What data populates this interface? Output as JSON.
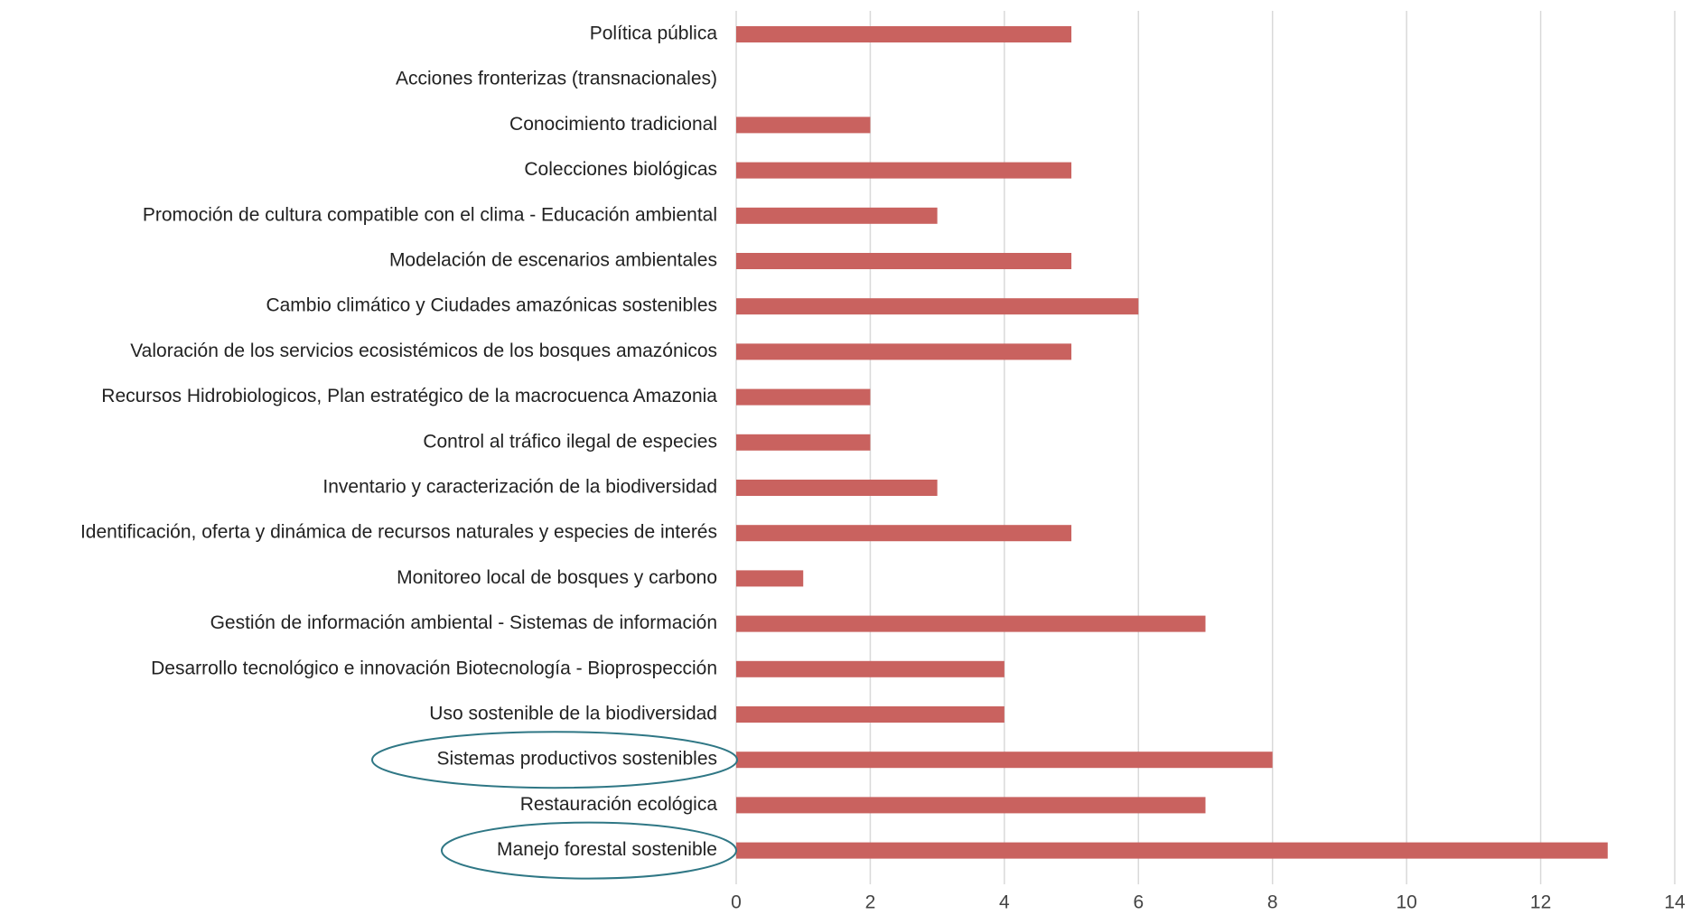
{
  "chart_data": {
    "type": "barh",
    "categories": [
      "Política pública",
      "Acciones fronterizas (transnacionales)",
      "Conocimiento tradicional",
      "Colecciones biológicas",
      "Promoción de cultura compatible con el clima - Educación ambiental",
      "Modelación  de escenarios ambientales",
      "Cambio climático y Ciudades amazónicas sostenibles",
      "Valoración de los servicios ecosistémicos de los bosques amazónicos",
      "Recursos Hidrobiologicos, Plan estratégico de la macrocuenca Amazonia",
      "Control al tráfico ilegal de especies",
      "Inventario y caracterización de la biodiversidad",
      "Identificación, oferta y dinámica de recursos naturales y especies de interés",
      "Monitoreo local de bosques y carbono",
      "Gestión de información ambiental - Sistemas de información",
      "Desarrollo tecnológico e innovación  Biotecnología - Bioprospección",
      "Uso sostenible de la biodiversidad",
      "Sistemas productivos sostenibles",
      "Restauración ecológica",
      "Manejo forestal sostenible"
    ],
    "values": [
      5,
      0,
      2,
      5,
      3,
      5,
      6,
      5,
      2,
      2,
      3,
      5,
      1,
      7,
      4,
      4,
      8,
      7,
      13
    ],
    "color": "#c9625f",
    "xlim": [
      0,
      14
    ],
    "xticks": [
      0,
      2,
      4,
      6,
      8,
      10,
      12,
      14
    ],
    "grid": true
  }
}
